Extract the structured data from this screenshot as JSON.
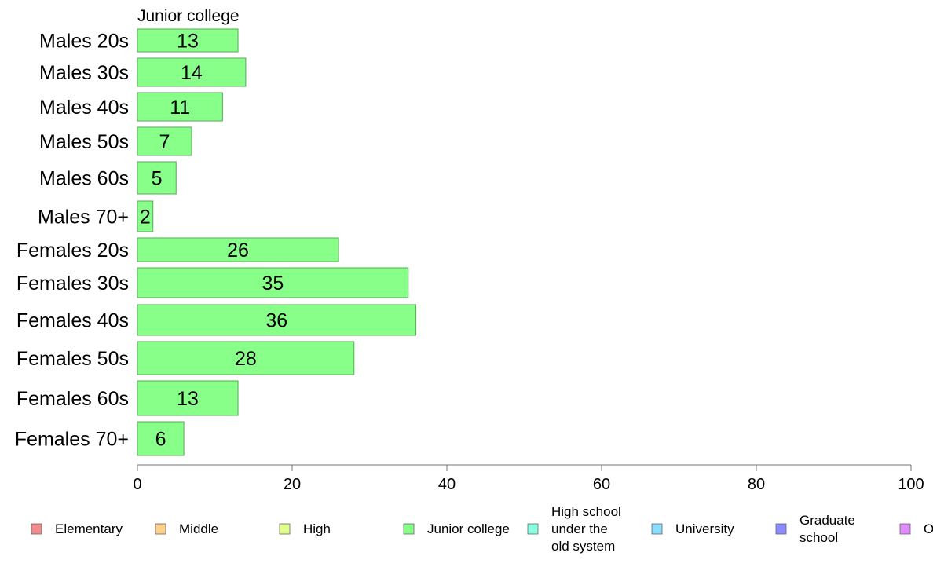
{
  "chart_data": {
    "type": "bar",
    "orientation": "horizontal",
    "title": "Junior college",
    "categories": [
      "Males 20s",
      "Males 30s",
      "Males 40s",
      "Males 50s",
      "Males 60s",
      "Males 70+",
      "Females 20s",
      "Females 30s",
      "Females 40s",
      "Females 50s",
      "Females 60s",
      "Females 70+"
    ],
    "values": [
      13,
      14,
      11,
      7,
      5,
      2,
      26,
      35,
      36,
      28,
      13,
      6
    ],
    "bar_color": "#88ff88",
    "xlim": [
      0,
      100
    ],
    "xticks": [
      0,
      20,
      40,
      60,
      80,
      100
    ],
    "grid": false,
    "legend_position": "bottom",
    "legend": [
      {
        "label": "Elementary",
        "color": "#f28c8c"
      },
      {
        "label": "Middle",
        "color": "#ffd28c"
      },
      {
        "label": "High",
        "color": "#e0ff8c"
      },
      {
        "label": "Junior college",
        "color": "#88ff88"
      },
      {
        "label": "High school under the old system",
        "lines": [
          "High school",
          "under the",
          "old system"
        ],
        "color": "#88ffe0"
      },
      {
        "label": "University",
        "color": "#8cdcff"
      },
      {
        "label": "Graduate school",
        "lines": [
          "Graduate",
          "school"
        ],
        "color": "#8c8cff"
      },
      {
        "label": "O",
        "color": "#e08cff"
      }
    ]
  }
}
